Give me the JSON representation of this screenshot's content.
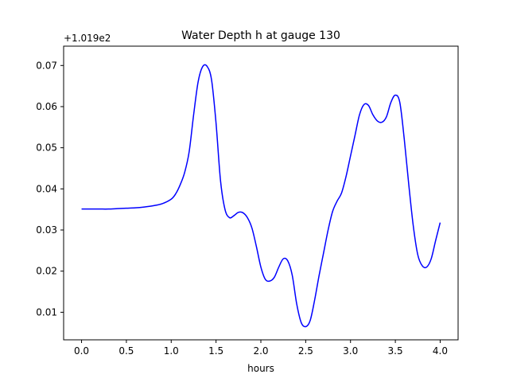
{
  "chart_data": {
    "type": "line",
    "title": "Water Depth h at gauge 130",
    "xlabel": "hours",
    "ylabel": "",
    "y_offset_label": "+1.019e2",
    "xlim": [
      -0.2,
      4.2
    ],
    "ylim": [
      0.0033,
      0.0747
    ],
    "x_ticks": [
      0.0,
      0.5,
      1.0,
      1.5,
      2.0,
      2.5,
      3.0,
      3.5,
      4.0
    ],
    "x_tick_labels": [
      "0.0",
      "0.5",
      "1.0",
      "1.5",
      "2.0",
      "2.5",
      "3.0",
      "3.5",
      "4.0"
    ],
    "y_ticks": [
      0.01,
      0.02,
      0.03,
      0.04,
      0.05,
      0.06,
      0.07
    ],
    "y_tick_labels": [
      "0.01",
      "0.02",
      "0.03",
      "0.04",
      "0.05",
      "0.06",
      "0.07"
    ],
    "grid": false,
    "series": [
      {
        "color": "#0000ff",
        "x": [
          0.0,
          0.1,
          0.2,
          0.3,
          0.4,
          0.5,
          0.6,
          0.7,
          0.8,
          0.9,
          1.0,
          1.05,
          1.1,
          1.15,
          1.2,
          1.25,
          1.3,
          1.35,
          1.4,
          1.45,
          1.5,
          1.55,
          1.6,
          1.65,
          1.7,
          1.75,
          1.8,
          1.85,
          1.9,
          1.95,
          2.0,
          2.05,
          2.1,
          2.15,
          2.2,
          2.25,
          2.3,
          2.35,
          2.4,
          2.45,
          2.5,
          2.55,
          2.6,
          2.65,
          2.7,
          2.75,
          2.8,
          2.85,
          2.9,
          2.95,
          3.0,
          3.05,
          3.1,
          3.15,
          3.2,
          3.25,
          3.3,
          3.35,
          3.4,
          3.45,
          3.5,
          3.55,
          3.6,
          3.65,
          3.7,
          3.75,
          3.8,
          3.85,
          3.9,
          3.95,
          4.0
        ],
        "y": [
          0.0351,
          0.0351,
          0.0351,
          0.0351,
          0.0352,
          0.0353,
          0.0354,
          0.0356,
          0.0359,
          0.0364,
          0.0375,
          0.0388,
          0.041,
          0.044,
          0.049,
          0.058,
          0.066,
          0.0697,
          0.0698,
          0.0665,
          0.056,
          0.042,
          0.035,
          0.033,
          0.0335,
          0.0343,
          0.0342,
          0.033,
          0.0305,
          0.026,
          0.021,
          0.018,
          0.0176,
          0.0185,
          0.021,
          0.023,
          0.0225,
          0.019,
          0.012,
          0.0075,
          0.0065,
          0.008,
          0.013,
          0.019,
          0.0245,
          0.03,
          0.0345,
          0.037,
          0.039,
          0.043,
          0.048,
          0.053,
          0.058,
          0.0605,
          0.0603,
          0.058,
          0.0565,
          0.0562,
          0.0575,
          0.061,
          0.0628,
          0.061,
          0.052,
          0.041,
          0.031,
          0.024,
          0.0213,
          0.021,
          0.023,
          0.0275,
          0.0318
        ]
      }
    ]
  }
}
